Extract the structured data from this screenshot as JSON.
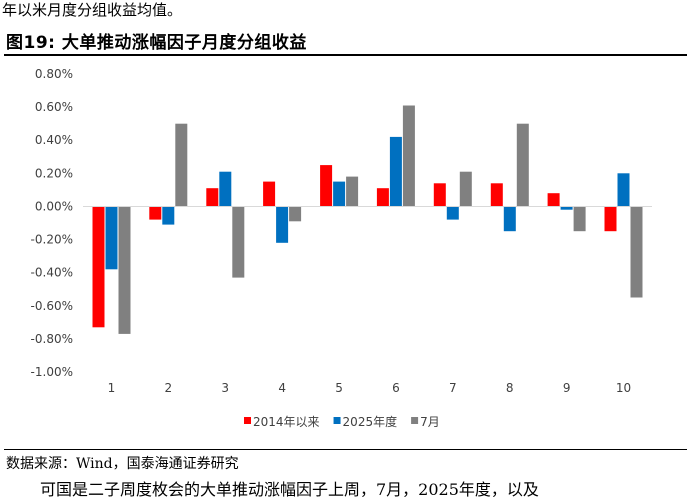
{
  "intro_text": "年以米月度分组收益均值。",
  "figure_title": "图19:  大单推动涨幅因子月度分组收益",
  "source_text": "数据来源：Wind，国泰海通证券研究",
  "continuation_text": "可国是二子周度枚会的大单推动涨幅因子上周，7月，2025年度，以及",
  "colors": {
    "series1": "#ff0000",
    "series2": "#0070c0",
    "series3": "#808080"
  },
  "chart_data": {
    "type": "bar",
    "categories": [
      "1",
      "2",
      "3",
      "4",
      "5",
      "6",
      "7",
      "8",
      "9",
      "10"
    ],
    "series": [
      {
        "name": "2014年以来",
        "values": [
          -0.73,
          -0.08,
          0.11,
          0.15,
          0.25,
          0.11,
          0.14,
          0.14,
          0.08,
          -0.15
        ]
      },
      {
        "name": "2025年度",
        "values": [
          -0.38,
          -0.11,
          0.21,
          -0.22,
          0.15,
          0.42,
          -0.08,
          -0.15,
          -0.02,
          0.2
        ]
      },
      {
        "name": "7月",
        "values": [
          -0.77,
          0.5,
          -0.43,
          -0.09,
          0.18,
          0.61,
          0.21,
          0.5,
          -0.15,
          -0.55
        ]
      }
    ],
    "yticks": [
      "0.80%",
      "0.60%",
      "0.40%",
      "0.20%",
      "0.00%",
      "-0.20%",
      "-0.40%",
      "-0.60%",
      "-0.80%",
      "-1.00%"
    ],
    "ylim": [
      -1.0,
      0.8
    ],
    "grid": false,
    "legend_position": "bottom"
  }
}
